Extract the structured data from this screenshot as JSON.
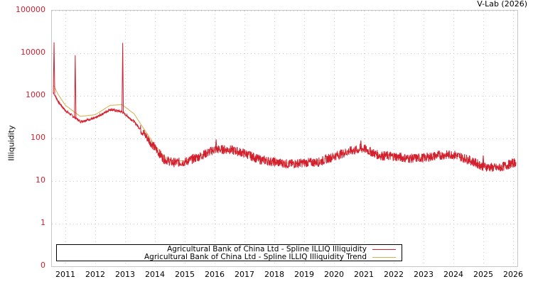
{
  "header": {
    "credit": "V-Lab (2026)"
  },
  "chart_data": {
    "type": "line",
    "title": "",
    "xlabel": "",
    "ylabel": "Illiquidity",
    "yscale": "log",
    "y_ticks": [
      "100000",
      "10000",
      "1000",
      "100",
      "10",
      "1",
      "0"
    ],
    "x_ticks": [
      "2011",
      "2012",
      "2013",
      "2014",
      "2015",
      "2016",
      "2017",
      "2018",
      "2019",
      "2020",
      "2021",
      "2022",
      "2023",
      "2024",
      "2025",
      "2026"
    ],
    "xlim": [
      2010.55,
      2026.15
    ],
    "ylim": [
      0,
      100000
    ],
    "grid": true,
    "legend_position": "bottom-left inside",
    "x": [
      2010.6,
      2010.75,
      2011.0,
      2011.5,
      2012.0,
      2012.5,
      2012.9,
      2013.3,
      2013.6,
      2014.0,
      2014.3,
      2014.6,
      2015.0,
      2015.5,
      2016.0,
      2016.5,
      2017.0,
      2017.5,
      2018.0,
      2018.5,
      2019.0,
      2019.5,
      2020.0,
      2020.5,
      2021.0,
      2021.5,
      2022.0,
      2022.5,
      2023.0,
      2023.5,
      2024.0,
      2024.5,
      2025.0,
      2025.5,
      2026.1
    ],
    "series": [
      {
        "name": "Agricultural Bank of China Ltd - Spline ILLIQ Illiquidity",
        "color": "#d3202e",
        "values": [
          1200,
          750,
          450,
          250,
          300,
          480,
          420,
          250,
          140,
          60,
          33,
          27,
          28,
          38,
          55,
          55,
          45,
          32,
          28,
          25,
          27,
          28,
          38,
          50,
          58,
          40,
          38,
          34,
          35,
          40,
          42,
          32,
          22,
          20,
          28
        ],
        "spikes": [
          {
            "x": 2010.62,
            "y": 18000
          },
          {
            "x": 2011.33,
            "y": 9000
          },
          {
            "x": 2012.92,
            "y": 17500
          },
          {
            "x": 2016.05,
            "y": 95
          },
          {
            "x": 2020.9,
            "y": 90
          },
          {
            "x": 2025.0,
            "y": 40
          }
        ]
      },
      {
        "name": "Agricultural Bank of China Ltd - Spline ILLIQ Illiquidity Trend",
        "color": "#d4b04a",
        "values": [
          1800,
          1100,
          600,
          330,
          360,
          600,
          620,
          380,
          180,
          70,
          38,
          30,
          30,
          40,
          52,
          55,
          45,
          34,
          28,
          26,
          27,
          30,
          40,
          50,
          55,
          43,
          38,
          34,
          35,
          39,
          40,
          33,
          23,
          21,
          25
        ]
      }
    ]
  },
  "legend": {
    "items": [
      {
        "label": "Agricultural Bank of China Ltd - Spline ILLIQ Illiquidity",
        "color": "#d3202e"
      },
      {
        "label": "Agricultural Bank of China Ltd - Spline ILLIQ Illiquidity Trend",
        "color": "#d4b04a"
      }
    ]
  }
}
